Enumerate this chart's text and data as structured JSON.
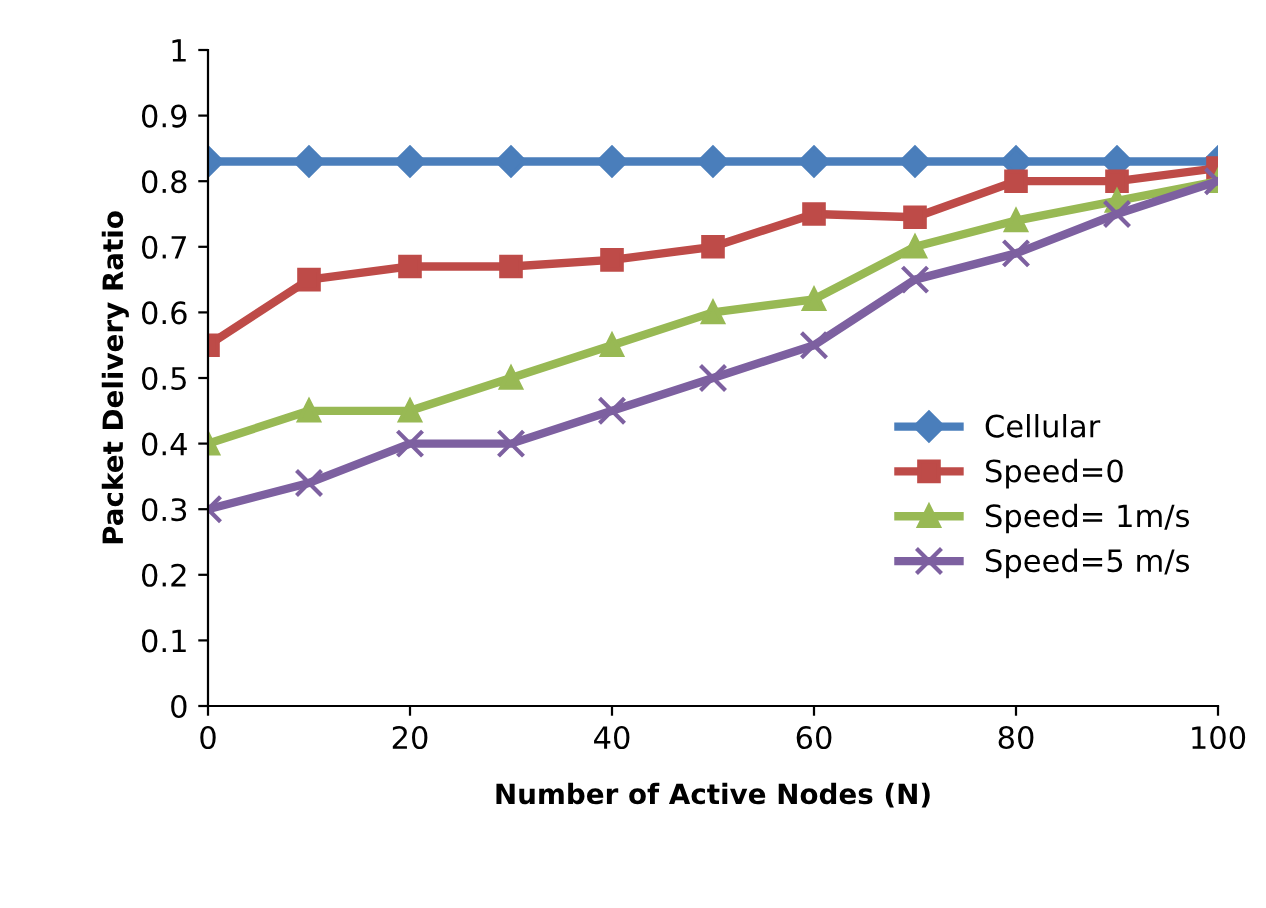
{
  "chart_data": {
    "type": "line",
    "xlabel": "Number of Active Nodes (N)",
    "ylabel": "Packet Delivery Ratio",
    "x": [
      0,
      10,
      20,
      30,
      40,
      50,
      60,
      70,
      80,
      90,
      100
    ],
    "series": [
      {
        "name": "Cellular",
        "color": "#4a7ebb",
        "marker": "diamond",
        "values": [
          0.83,
          0.83,
          0.83,
          0.83,
          0.83,
          0.83,
          0.83,
          0.83,
          0.83,
          0.83,
          0.83
        ]
      },
      {
        "name": "Speed=0",
        "color": "#be4b48",
        "marker": "square",
        "values": [
          0.55,
          0.65,
          0.67,
          0.67,
          0.68,
          0.7,
          0.75,
          0.745,
          0.8,
          0.8,
          0.82
        ]
      },
      {
        "name": "Speed= 1m/s",
        "color": "#98b954",
        "marker": "triangle",
        "values": [
          0.4,
          0.45,
          0.45,
          0.5,
          0.55,
          0.6,
          0.62,
          0.7,
          0.74,
          0.77,
          0.8
        ]
      },
      {
        "name": "Speed=5 m/s",
        "color": "#7d60a0",
        "marker": "cross",
        "values": [
          0.3,
          0.34,
          0.4,
          0.4,
          0.45,
          0.5,
          0.55,
          0.65,
          0.69,
          0.75,
          0.8
        ]
      }
    ],
    "xlim": [
      0,
      100
    ],
    "xticks": [
      0,
      20,
      40,
      60,
      80,
      100
    ],
    "ylim": [
      0,
      1
    ],
    "yticks": [
      0,
      0.1,
      0.2,
      0.3,
      0.4,
      0.5,
      0.6,
      0.7,
      0.8,
      0.9,
      1
    ],
    "grid": false,
    "legend": "right"
  }
}
